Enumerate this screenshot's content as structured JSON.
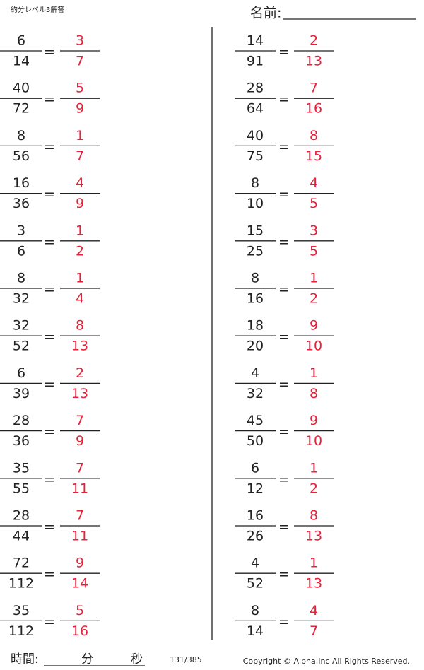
{
  "header": {
    "title": "約分レベル3解答",
    "name_label": "名前:"
  },
  "equals": "=",
  "problems": {
    "left": [
      {
        "num": "6",
        "den": "14",
        "ans_num": "3",
        "ans_den": "7"
      },
      {
        "num": "40",
        "den": "72",
        "ans_num": "5",
        "ans_den": "9"
      },
      {
        "num": "8",
        "den": "56",
        "ans_num": "1",
        "ans_den": "7"
      },
      {
        "num": "16",
        "den": "36",
        "ans_num": "4",
        "ans_den": "9"
      },
      {
        "num": "3",
        "den": "6",
        "ans_num": "1",
        "ans_den": "2"
      },
      {
        "num": "8",
        "den": "32",
        "ans_num": "1",
        "ans_den": "4"
      },
      {
        "num": "32",
        "den": "52",
        "ans_num": "8",
        "ans_den": "13"
      },
      {
        "num": "6",
        "den": "39",
        "ans_num": "2",
        "ans_den": "13"
      },
      {
        "num": "28",
        "den": "36",
        "ans_num": "7",
        "ans_den": "9"
      },
      {
        "num": "35",
        "den": "55",
        "ans_num": "7",
        "ans_den": "11"
      },
      {
        "num": "28",
        "den": "44",
        "ans_num": "7",
        "ans_den": "11"
      },
      {
        "num": "72",
        "den": "112",
        "ans_num": "9",
        "ans_den": "14"
      },
      {
        "num": "35",
        "den": "112",
        "ans_num": "5",
        "ans_den": "16"
      }
    ],
    "right": [
      {
        "num": "14",
        "den": "91",
        "ans_num": "2",
        "ans_den": "13"
      },
      {
        "num": "28",
        "den": "64",
        "ans_num": "7",
        "ans_den": "16"
      },
      {
        "num": "40",
        "den": "75",
        "ans_num": "8",
        "ans_den": "15"
      },
      {
        "num": "8",
        "den": "10",
        "ans_num": "4",
        "ans_den": "5"
      },
      {
        "num": "15",
        "den": "25",
        "ans_num": "3",
        "ans_den": "5"
      },
      {
        "num": "8",
        "den": "16",
        "ans_num": "1",
        "ans_den": "2"
      },
      {
        "num": "18",
        "den": "20",
        "ans_num": "9",
        "ans_den": "10"
      },
      {
        "num": "4",
        "den": "32",
        "ans_num": "1",
        "ans_den": "8"
      },
      {
        "num": "45",
        "den": "50",
        "ans_num": "9",
        "ans_den": "10"
      },
      {
        "num": "6",
        "den": "12",
        "ans_num": "1",
        "ans_den": "2"
      },
      {
        "num": "16",
        "den": "26",
        "ans_num": "8",
        "ans_den": "13"
      },
      {
        "num": "4",
        "den": "52",
        "ans_num": "1",
        "ans_den": "13"
      },
      {
        "num": "8",
        "den": "14",
        "ans_num": "4",
        "ans_den": "7"
      }
    ]
  },
  "footer": {
    "time_label": "時間:",
    "minutes": "分",
    "seconds": "秒",
    "page": "131/385",
    "copyright": "Copyright ©  Alpha.Inc All Rights Reserved."
  }
}
